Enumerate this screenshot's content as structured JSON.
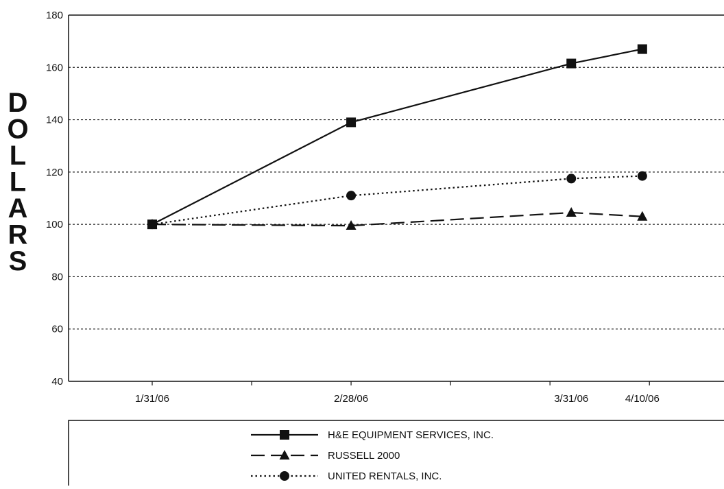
{
  "chart_data": {
    "type": "line",
    "title": "",
    "xlabel": "",
    "ylabel": "DOLLARS",
    "categories": [
      "1/31/06",
      "2/28/06",
      "3/31/06",
      "4/10/06"
    ],
    "x_dates": [
      "2006-01-31",
      "2006-02-28",
      "2006-03-31",
      "2006-04-10"
    ],
    "ylim": [
      40,
      180
    ],
    "yticks": [
      40,
      60,
      80,
      100,
      120,
      140,
      160,
      180
    ],
    "grid": "horizontal-dotted",
    "legend_position": "bottom",
    "series": [
      {
        "name": "H&E EQUIPMENT SERVICES, INC.",
        "values": [
          100,
          139,
          161.5,
          167
        ],
        "line_style": "solid",
        "marker": "square",
        "color": "#111111"
      },
      {
        "name": "RUSSELL 2000",
        "values": [
          100,
          99.5,
          104.5,
          103
        ],
        "line_style": "dashed",
        "marker": "triangle",
        "color": "#111111"
      },
      {
        "name": "UNITED RENTALS, INC.",
        "values": [
          100,
          111,
          117.5,
          118.5
        ],
        "line_style": "dotted",
        "marker": "circle",
        "color": "#111111"
      }
    ]
  }
}
